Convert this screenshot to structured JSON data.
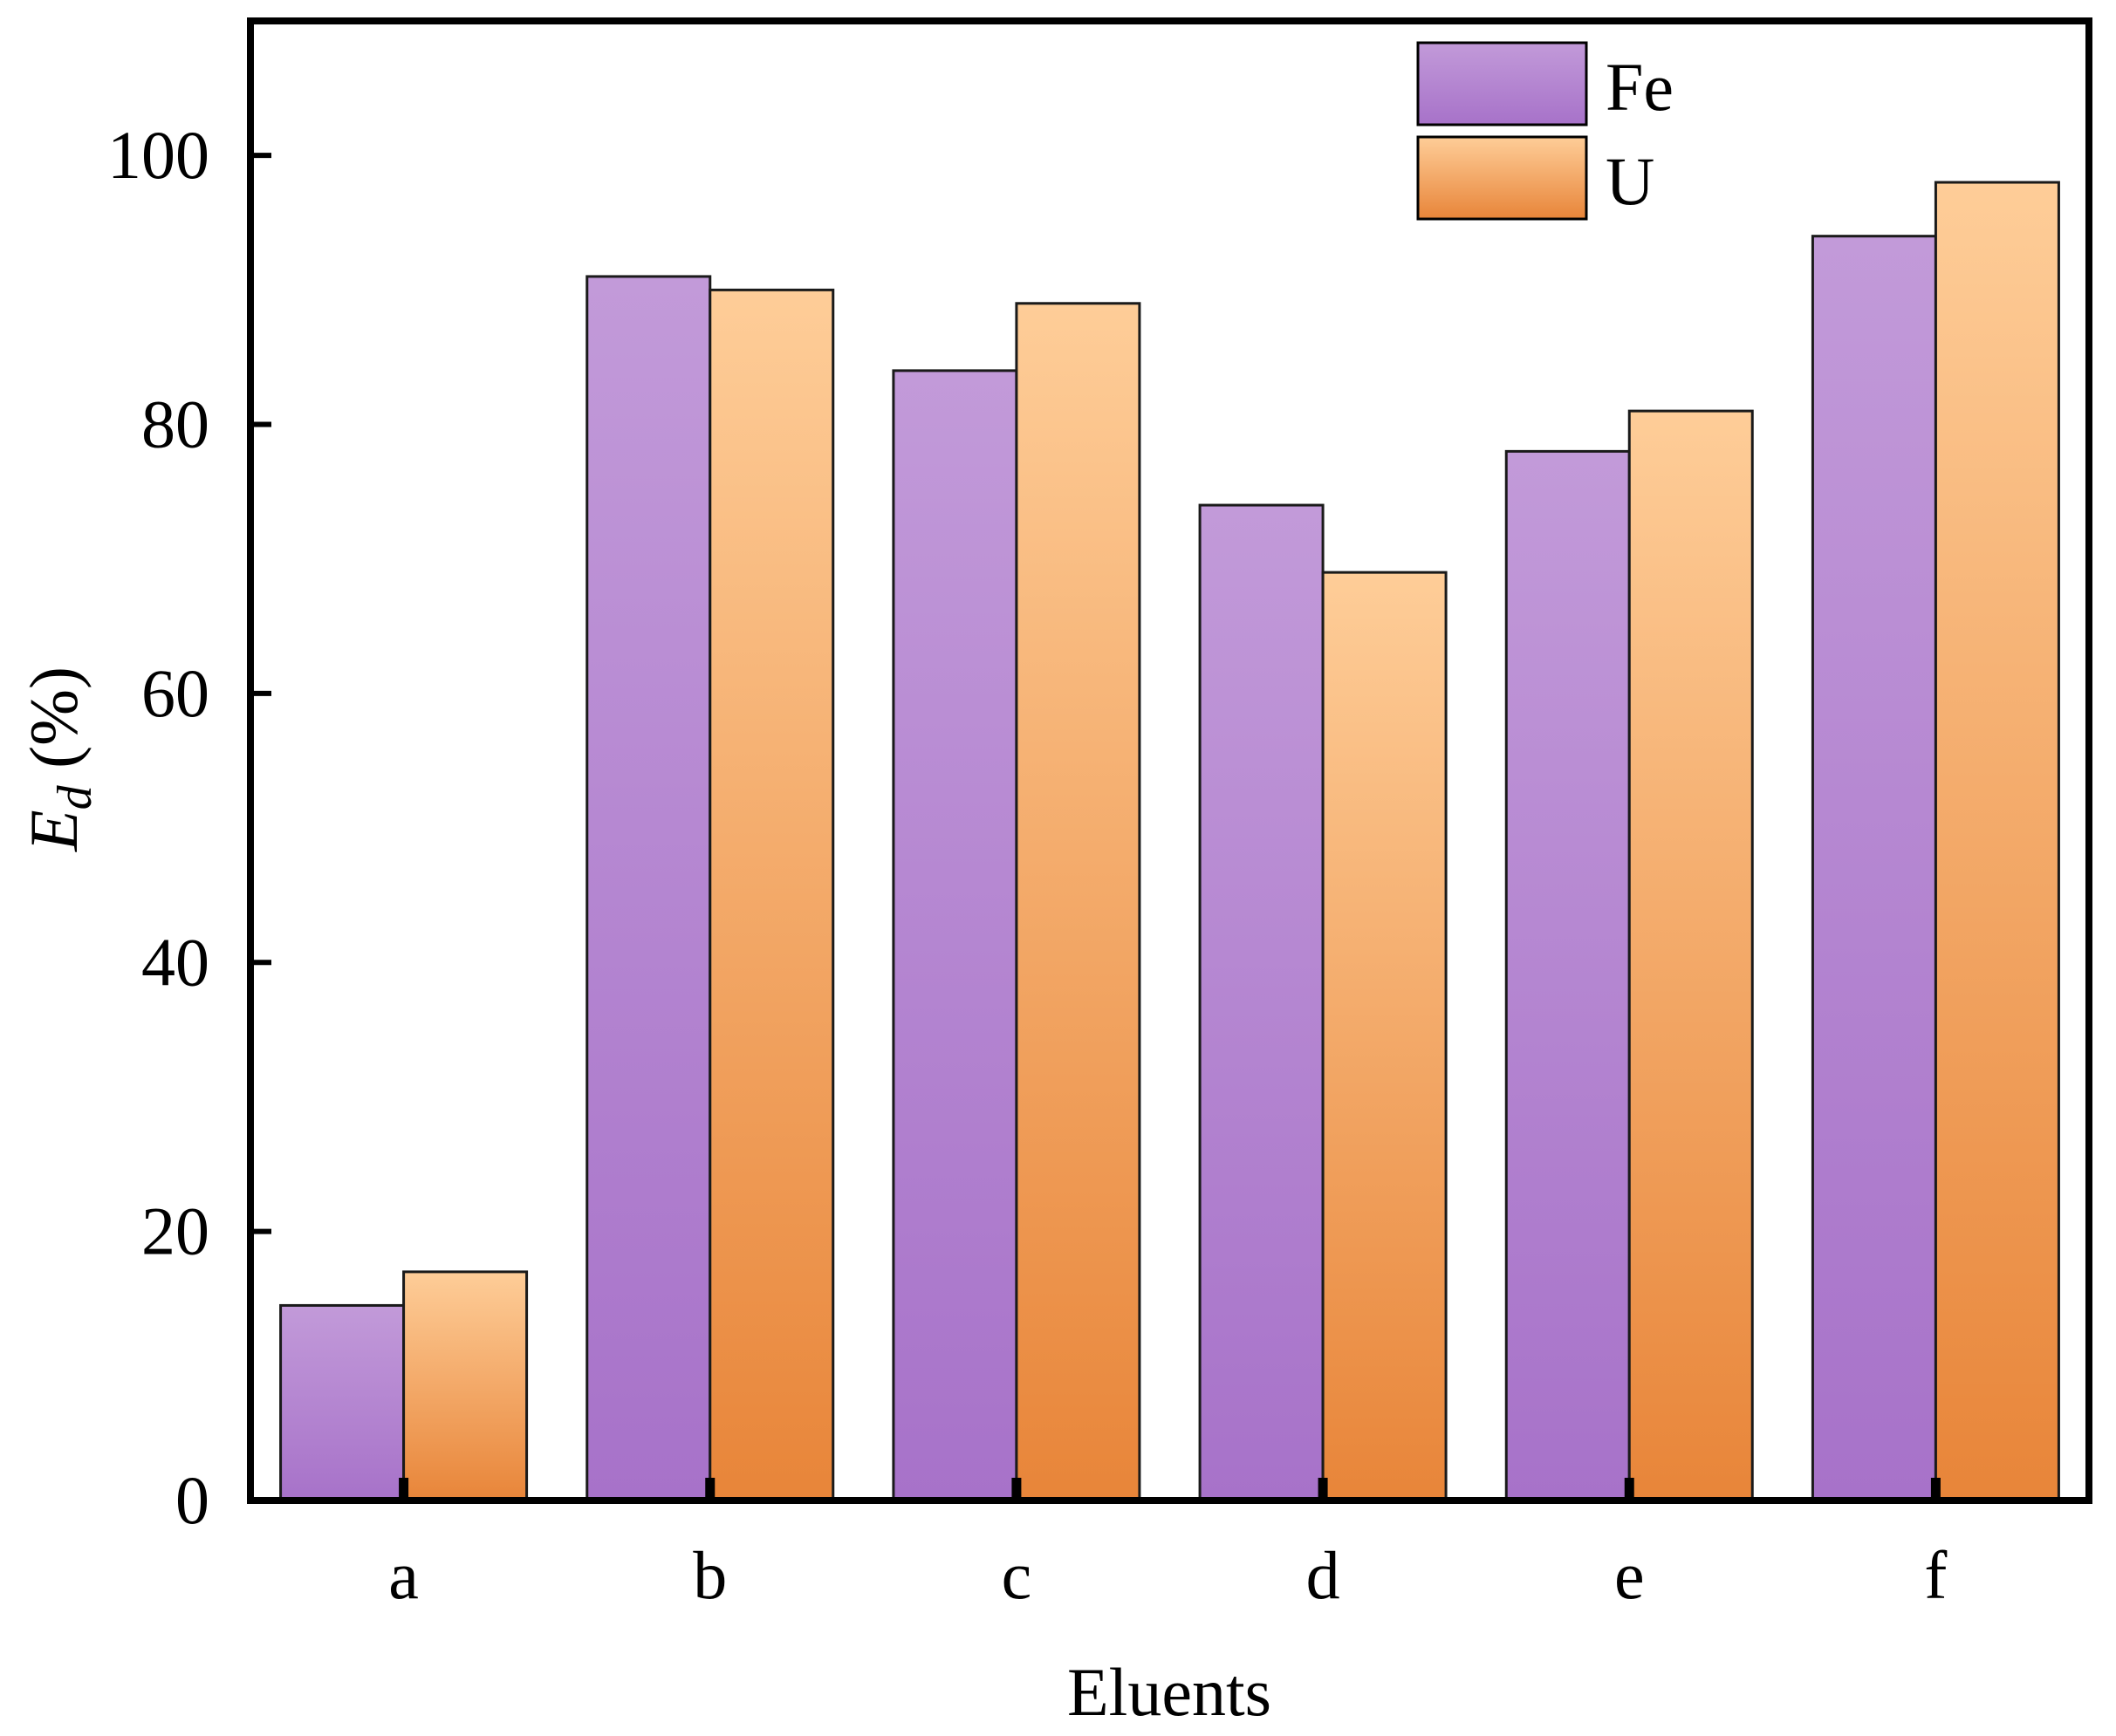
{
  "chart_data": {
    "type": "bar",
    "title": "",
    "xlabel": "Eluents",
    "ylabel": {
      "main": "E",
      "subscript": "d",
      "unit": " (%)"
    },
    "categories": [
      "a",
      "b",
      "c",
      "d",
      "e",
      "f"
    ],
    "series": [
      {
        "name": "Fe",
        "values": [
          14.5,
          91,
          84,
          74,
          78,
          94
        ],
        "color_top": "#c29ad9",
        "color_bottom": "#a772c9"
      },
      {
        "name": "U",
        "values": [
          17,
          90,
          89,
          69,
          81,
          98
        ],
        "color_top": "#fecd98",
        "color_bottom": "#e88539"
      }
    ],
    "ylim": [
      0,
      110
    ],
    "yticks": [
      0,
      20,
      40,
      60,
      80,
      100
    ],
    "grid": false,
    "legend_position": "top-right"
  }
}
